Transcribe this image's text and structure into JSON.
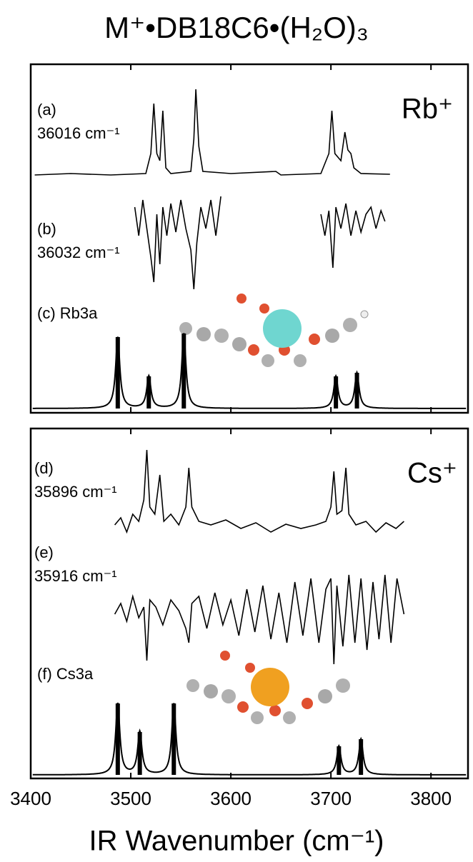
{
  "figure": {
    "title": "M⁺•DB18C6•(H₂O)₃",
    "x_label": "IR Wavenumber (cm⁻¹)"
  },
  "chart_data": [
    {
      "type": "line",
      "ion_label": "Rb⁺",
      "xlim": [
        3400,
        3837
      ],
      "xticks": [
        3400,
        3500,
        3600,
        3700,
        3800
      ],
      "series": [
        {
          "name": "(a)",
          "note": "36016 cm⁻¹",
          "color": "#000000",
          "x": [
            3404,
            3440,
            3480,
            3515,
            3520,
            3523,
            3526,
            3529,
            3532,
            3535,
            3540,
            3560,
            3563,
            3565,
            3568,
            3572,
            3600,
            3645,
            3650,
            3690,
            3698,
            3701,
            3704,
            3710,
            3714,
            3717,
            3720,
            3723,
            3730,
            3759
          ],
          "values": [
            0,
            0.02,
            0,
            0.02,
            0.3,
            1.0,
            0.3,
            0.2,
            0.9,
            0.1,
            0.02,
            0.05,
            0.5,
            1.2,
            0.4,
            0.05,
            0.02,
            0.05,
            0,
            0.02,
            0.3,
            0.9,
            0.3,
            0.2,
            0.6,
            0.35,
            0.3,
            0.1,
            0.02,
            0.01
          ]
        },
        {
          "name": "(b)",
          "note": "36032 cm⁻¹",
          "color": "#000000",
          "x": [
            3504,
            3508,
            3512,
            3516,
            3520,
            3523,
            3526,
            3529,
            3532,
            3536,
            3540,
            3545,
            3550,
            3555,
            3560,
            3563,
            3566,
            3570,
            3575,
            3580,
            3585,
            3590,
            null,
            3690,
            3694,
            3698,
            3702,
            3705,
            3710,
            3715,
            3720,
            3725,
            3730,
            3735,
            3740,
            3745,
            3750,
            3754
          ],
          "values": [
            0.2,
            -0.2,
            0.3,
            -0.1,
            -0.5,
            -0.85,
            0.1,
            -0.6,
            0.2,
            -0.2,
            0.25,
            -0.15,
            0.3,
            -0.1,
            -0.4,
            -0.95,
            -0.3,
            0.2,
            -0.1,
            0.3,
            -0.2,
            0.35,
            null,
            0.1,
            -0.2,
            0.15,
            -0.65,
            0.2,
            -0.1,
            0.25,
            -0.2,
            0.15,
            -0.15,
            0.1,
            0.2,
            -0.1,
            0.15,
            0
          ]
        },
        {
          "name": "(c) Rb3a",
          "type": "stick",
          "color": "#000000",
          "x": [
            3487,
            3518,
            3553,
            3705,
            3726
          ],
          "values": [
            1.0,
            0.45,
            1.05,
            0.45,
            0.5
          ]
        }
      ]
    },
    {
      "type": "line",
      "ion_label": "Cs⁺",
      "xlim": [
        3400,
        3837
      ],
      "xticks": [
        3400,
        3500,
        3600,
        3700,
        3800
      ],
      "series": [
        {
          "name": "(d)",
          "note": "35896 cm⁻¹",
          "color": "#000000",
          "x": [
            3484,
            3490,
            3496,
            3502,
            3508,
            3513,
            3516,
            3519,
            3524,
            3529,
            3533,
            3540,
            3548,
            3555,
            3558,
            3561,
            3568,
            3580,
            3595,
            3610,
            3625,
            3640,
            3655,
            3670,
            3685,
            3695,
            3700,
            3703,
            3706,
            3711,
            3715,
            3718,
            3725,
            3735,
            3745,
            3755,
            3765,
            3773
          ],
          "values": [
            0.05,
            0.15,
            -0.05,
            0.2,
            0.1,
            0.4,
            1.1,
            0.3,
            0.2,
            0.75,
            0.1,
            0.2,
            0.05,
            0.3,
            0.85,
            0.3,
            0.1,
            0.05,
            0.12,
            0,
            0.08,
            -0.05,
            0.06,
            0,
            0.05,
            0.1,
            0.3,
            0.8,
            0.2,
            0.25,
            0.85,
            0.2,
            0.05,
            0.1,
            -0.05,
            0.08,
            0,
            0.1
          ]
        },
        {
          "name": "(e)",
          "note": "35916 cm⁻¹",
          "color": "#000000",
          "x": [
            3484,
            3490,
            3496,
            3502,
            3508,
            3513,
            3516,
            3519,
            3525,
            3532,
            3540,
            3548,
            3555,
            3558,
            3561,
            3568,
            3576,
            3584,
            3592,
            3600,
            3608,
            3616,
            3624,
            3632,
            3640,
            3648,
            3656,
            3664,
            3672,
            3680,
            3688,
            3695,
            3700,
            3703,
            3706,
            3712,
            3718,
            3724,
            3730,
            3736,
            3742,
            3748,
            3754,
            3760,
            3766,
            3773
          ],
          "values": [
            0,
            0.15,
            -0.1,
            0.25,
            -0.05,
            0.1,
            -0.65,
            0.2,
            0.1,
            -0.15,
            0.2,
            0.05,
            -0.2,
            -0.4,
            0.15,
            0.25,
            -0.2,
            0.3,
            -0.15,
            0.2,
            -0.3,
            0.35,
            -0.25,
            0.4,
            -0.35,
            0.3,
            -0.4,
            0.45,
            -0.3,
            0.5,
            -0.4,
            0.35,
            0.5,
            -0.7,
            0.4,
            -0.45,
            0.55,
            -0.4,
            0.5,
            -0.5,
            0.45,
            -0.35,
            0.55,
            -0.4,
            0.5,
            0
          ]
        },
        {
          "name": "(f) Cs3a",
          "type": "stick",
          "color": "#000000",
          "x": [
            3487,
            3509,
            3543,
            3708,
            3730
          ],
          "values": [
            1.0,
            0.6,
            1.0,
            0.4,
            0.5
          ]
        }
      ]
    }
  ]
}
